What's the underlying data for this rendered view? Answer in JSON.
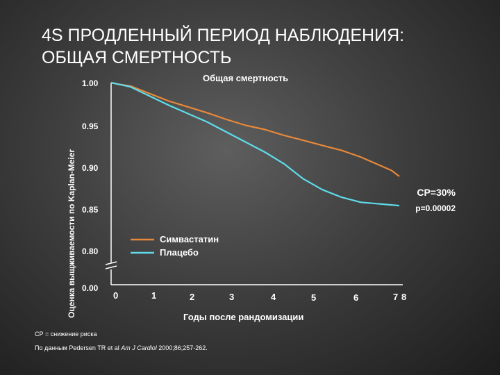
{
  "slide": {
    "title_line1": "4S ПРОДЛЕННЫЙ ПЕРИОД НАБЛЮДЕНИЯ:",
    "title_line2": "ОБЩАЯ СМЕРТНОСТЬ",
    "footnote_abbrev": "СР = снижение риска",
    "footnote_source_pre": "По данным Pedersen TR et al ",
    "footnote_source_journal": "Am J Cardiol",
    "footnote_source_post": " 2000;86;257-262."
  },
  "chart_data": {
    "type": "line",
    "title": "Общая смертность",
    "xlabel": "Годы после рандомизации",
    "ylabel": "Оценка выщживаемости по Kaplan-Meier",
    "xlim": [
      0,
      7.5
    ],
    "ylim": [
      0.8,
      1.0
    ],
    "axis_break": true,
    "x_ticks": [
      "0",
      "1",
      "2",
      "3",
      "4",
      "5",
      "6",
      "7",
      "8"
    ],
    "y_ticks": [
      "1.00",
      "0.95",
      "0.90",
      "0.85",
      "0.80",
      "0.00"
    ],
    "series": [
      {
        "name": "Симвастатин",
        "color": "#E8883A",
        "x": [
          0.0,
          0.2,
          0.5,
          1.0,
          1.5,
          2.0,
          2.5,
          3.0,
          3.5,
          4.0,
          4.5,
          5.0,
          5.5,
          6.0,
          6.5,
          7.0,
          7.3,
          7.5
        ],
        "y": [
          1.0,
          0.998,
          0.996,
          0.987,
          0.978,
          0.971,
          0.964,
          0.956,
          0.949,
          0.944,
          0.937,
          0.931,
          0.925,
          0.919,
          0.911,
          0.901,
          0.895,
          0.888
        ]
      },
      {
        "name": "Плацебо",
        "color": "#5EDCEB",
        "x": [
          0.0,
          0.2,
          0.5,
          1.0,
          1.5,
          2.0,
          2.5,
          3.0,
          3.5,
          4.0,
          4.5,
          5.0,
          5.5,
          6.0,
          6.5,
          7.0,
          7.5
        ],
        "y": [
          1.0,
          0.998,
          0.995,
          0.984,
          0.973,
          0.963,
          0.953,
          0.941,
          0.929,
          0.917,
          0.903,
          0.885,
          0.872,
          0.863,
          0.857,
          0.855,
          0.853
        ]
      }
    ],
    "annotation_rr": "СР=30%",
    "annotation_p": "p=0.00002",
    "legend_position": "center"
  }
}
